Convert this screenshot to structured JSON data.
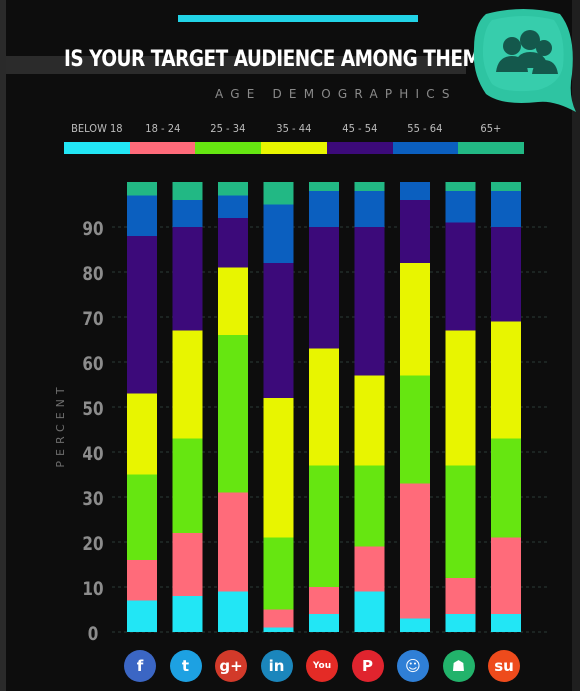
{
  "header": {
    "title": "IS YOUR TARGET AUDIENCE AMONG THEM?",
    "subtitle": "AGE DEMOGRAPHICS",
    "badge_icon": "users-group-icon"
  },
  "colors": {
    "background": "#0d0d0d",
    "accent": "#22d3e6",
    "badge": "#2ec4a2"
  },
  "chart_data": {
    "type": "bar",
    "stacked": true,
    "ylabel": "PERCENT",
    "ylim": [
      0,
      100
    ],
    "yticks": [
      0,
      10,
      20,
      30,
      40,
      50,
      60,
      70,
      80,
      90
    ],
    "grid": true,
    "legend": "top",
    "categories": [
      "facebook",
      "twitter",
      "google-plus",
      "linkedin",
      "youtube",
      "pinterest",
      "reddit",
      "slideshare",
      "stumbleupon"
    ],
    "series": [
      {
        "name": "BELOW 18",
        "color": "#22e6f5",
        "values": [
          7,
          8,
          9,
          1,
          4,
          9,
          3,
          4,
          4
        ]
      },
      {
        "name": "18 - 24",
        "color": "#ff6b7a",
        "values": [
          9,
          14,
          22,
          4,
          6,
          10,
          30,
          8,
          17
        ]
      },
      {
        "name": "25 - 34",
        "color": "#66e611",
        "values": [
          19,
          21,
          35,
          16,
          27,
          18,
          24,
          25,
          22
        ]
      },
      {
        "name": "35 - 44",
        "color": "#e8f500",
        "values": [
          18,
          24,
          15,
          31,
          26,
          20,
          25,
          30,
          26
        ]
      },
      {
        "name": "45 - 54",
        "color": "#3c0a7a",
        "values": [
          35,
          23,
          11,
          30,
          27,
          33,
          14,
          24,
          21
        ]
      },
      {
        "name": "55 - 64",
        "color": "#0b5fbf",
        "values": [
          9,
          6,
          5,
          13,
          8,
          8,
          4,
          7,
          8
        ]
      },
      {
        "name": "65+",
        "color": "#22b884",
        "values": [
          3,
          4,
          3,
          5,
          2,
          2,
          0,
          2,
          2
        ]
      }
    ]
  },
  "social_icons": [
    {
      "name": "facebook-icon",
      "glyph": "f",
      "color": "#3b66c4"
    },
    {
      "name": "twitter-icon",
      "glyph": "t",
      "color": "#1da1e2"
    },
    {
      "name": "google-plus-icon",
      "glyph": "g+",
      "color": "#d23a2a"
    },
    {
      "name": "linkedin-icon",
      "glyph": "in",
      "color": "#1b86bc"
    },
    {
      "name": "youtube-icon",
      "glyph": "You",
      "color": "#e42b26"
    },
    {
      "name": "pinterest-icon",
      "glyph": "P",
      "color": "#e0242e"
    },
    {
      "name": "reddit-icon",
      "glyph": "☺",
      "color": "#2f7fd6"
    },
    {
      "name": "slideshare-icon",
      "glyph": "☗",
      "color": "#22b36b"
    },
    {
      "name": "stumbleupon-icon",
      "glyph": "su",
      "color": "#ee4b1c"
    }
  ]
}
